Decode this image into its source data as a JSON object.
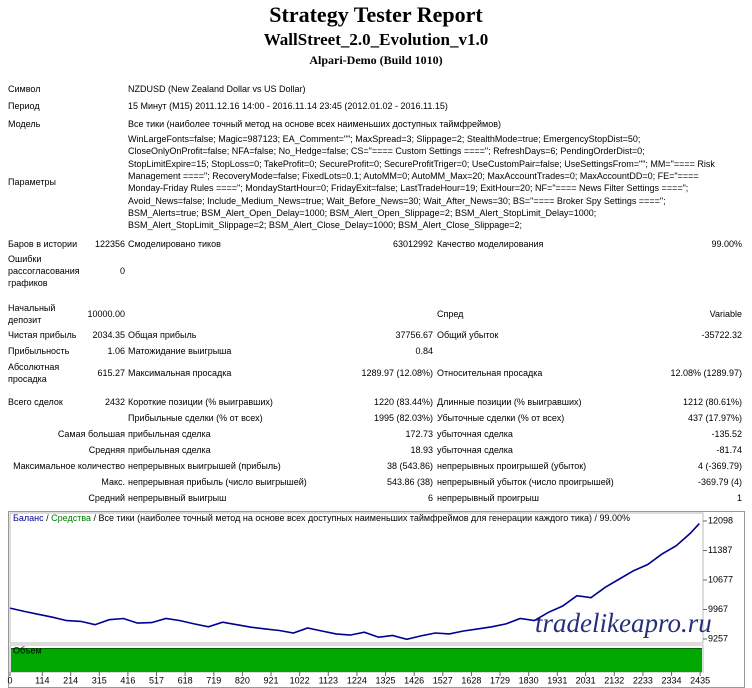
{
  "header": {
    "title": "Strategy Tester Report",
    "subtitle": "WallStreet_2.0_Evolution_v1.0",
    "server": "Alpari-Demo (Build 1010)"
  },
  "info": [
    {
      "label": "Символ",
      "value": "NZDUSD (New Zealand Dollar vs US Dollar)"
    },
    {
      "label": "Период",
      "value": "15 Минут (M15) 2011.12.16 14:00 - 2016.11.14 23:45 (2012.01.02 - 2016.11.15)"
    },
    {
      "label": "Модель",
      "value": "Все тики (наиболее точный метод на основе всех наименьших доступных таймфреймов)"
    },
    {
      "label": "Параметры",
      "lines": [
        "WinLargeFonts=false; Magic=987123; EA_Comment=\"\"; MaxSpread=3; Slippage=2; StealthMode=true; EmergencyStopDist=50;",
        "CloseOnlyOnProfit=false; NFA=false; No_Hedge=false; CS=\"==== Custom Settings ====\"; RefreshDays=6; PendingOrderDist=0;",
        "StopLimitExpire=15; StopLoss=0; TakeProfit=0; SecureProfit=0; SecureProfitTriger=0; UseCustomPair=false; UseSettingsFrom=\"\"; MM=\"==== Risk",
        "Management ====\"; RecoveryMode=false; FixedLots=0.1; AutoMM=0; AutoMM_Max=20; MaxAccountTrades=0; MaxAccountDD=0; FE=\"====",
        "Monday-Friday Rules ====\"; MondayStartHour=0; FridayExit=false; LastTradeHour=19; ExitHour=20; NF=\"==== News Filter Settings ====\";",
        "Avoid_News=false; Include_Medium_News=true; Wait_Before_News=30; Wait_After_News=30; BS=\"==== Broker Spy Settings ====\";",
        "BSM_Alerts=true; BSM_Alert_Open_Delay=1000; BSM_Alert_Open_Slippage=2; BSM_Alert_StopLimit_Delay=1000;",
        "BSM_Alert_StopLimit_Slippage=2; BSM_Alert_Close_Delay=1000; BSM_Alert_Close_Slippage=2;"
      ]
    }
  ],
  "stats": [
    {
      "label": "Баров в истории",
      "value": "122356",
      "label2": "Смоделировано тиков",
      "value2": "63012992",
      "label3": "Качество моделирования",
      "value3": "99.00%"
    },
    {
      "label": "Ошибки рассогласования графиков",
      "value": "0"
    },
    {
      "label": "Начальный депозит",
      "value": "10000.00",
      "label3": "Спред",
      "value3": "Variable"
    },
    {
      "label": "Чистая прибыль",
      "value": "2034.35",
      "label2": "Общая прибыль",
      "value2": "37756.67",
      "label3": "Общий убыток",
      "value3": "-35722.32"
    },
    {
      "label": "Прибыльность",
      "value": "1.06",
      "label2": "Матожидание выигрыша",
      "value2": "0.84"
    },
    {
      "label": "Абсолютная просадка",
      "value": "615.27",
      "label2": "Максимальная просадка",
      "value2": "1289.97 (12.08%)",
      "label3": "Относительная просадка",
      "value3": "12.08% (1289.97)"
    },
    {
      "label": "Всего сделок",
      "value": "2432",
      "label2": "Короткие позиции (% выигравших)",
      "value2": "1220 (83.44%)",
      "label3": "Длинные позиции (% выигравших)",
      "value3": "1212 (80.61%)"
    },
    {
      "label2": "Прибыльные сделки (% от всех)",
      "value2": "1995 (82.03%)",
      "label3": "Убыточные сделки (% от всех)",
      "value3": "437 (17.97%)"
    },
    {
      "label": "Самая большая",
      "label2": "прибыльная сделка",
      "value2": "172.73",
      "label3": "убыточная сделка",
      "value3": "-135.52"
    },
    {
      "label": "Средняя",
      "label2": "прибыльная сделка",
      "value2": "18.93",
      "label3": "убыточная сделка",
      "value3": "-81.74"
    },
    {
      "label": "Максимальное количество",
      "label2": "непрерывных выигрышей (прибыль)",
      "value2": "38 (543.86)",
      "label3": "непрерывных проигрышей (убыток)",
      "value3": "4 (-369.79)"
    },
    {
      "label": "Макс.",
      "label2": "непрерывная прибыль (число выигрышей)",
      "value2": "543.86 (38)",
      "label3": "непрерывный убыток (число проигрышей)",
      "value3": "-369.79 (4)"
    },
    {
      "label": "Средний",
      "label2": "непрерывный выигрыш",
      "value2": "6",
      "label3": "непрерывный проигрыш",
      "value3": "1"
    }
  ],
  "chart_data": {
    "type": "line",
    "series": [
      {
        "name": "Баланс",
        "color": "#000090",
        "x": [
          0,
          50,
          100,
          150,
          200,
          250,
          300,
          350,
          400,
          450,
          500,
          550,
          600,
          650,
          700,
          750,
          800,
          850,
          900,
          950,
          1000,
          1050,
          1100,
          1150,
          1200,
          1250,
          1300,
          1350,
          1400,
          1450,
          1500,
          1550,
          1600,
          1650,
          1700,
          1750,
          1800,
          1850,
          1900,
          1950,
          2000,
          2050,
          2100,
          2150,
          2200,
          2250,
          2300,
          2350,
          2400,
          2432
        ],
        "values": [
          10000,
          9920,
          9850,
          9780,
          9700,
          9680,
          9600,
          9720,
          9750,
          9640,
          9650,
          9750,
          9700,
          9620,
          9550,
          9660,
          9600,
          9540,
          9500,
          9460,
          9400,
          9520,
          9450,
          9380,
          9350,
          9420,
          9300,
          9340,
          9250,
          9330,
          9400,
          9380,
          9450,
          9500,
          9550,
          9620,
          9750,
          9700,
          9900,
          10050,
          10300,
          10250,
          10500,
          10700,
          10900,
          11050,
          11300,
          11500,
          11800,
          12034.35
        ]
      }
    ],
    "equity_label": "Средства",
    "equity_color": "#008000",
    "model_label": "Все тики (наиболее точный метод на основе всех доступных наименьших таймфреймов для генерации каждого тика)",
    "quality": "99.00%",
    "volume_label": "Объем",
    "volume_color": "#00a800",
    "watermark": "tradelikeapro.ru",
    "xlim": [
      0,
      2445
    ],
    "ylim": [
      9160,
      12290
    ],
    "xticks": [
      0,
      114,
      214,
      315,
      416,
      517,
      618,
      719,
      820,
      921,
      1022,
      1123,
      1224,
      1325,
      1426,
      1527,
      1628,
      1729,
      1830,
      1931,
      2031,
      2132,
      2233,
      2334,
      2435
    ],
    "yticks": [
      9257,
      9967,
      10677,
      11387,
      12098
    ]
  }
}
